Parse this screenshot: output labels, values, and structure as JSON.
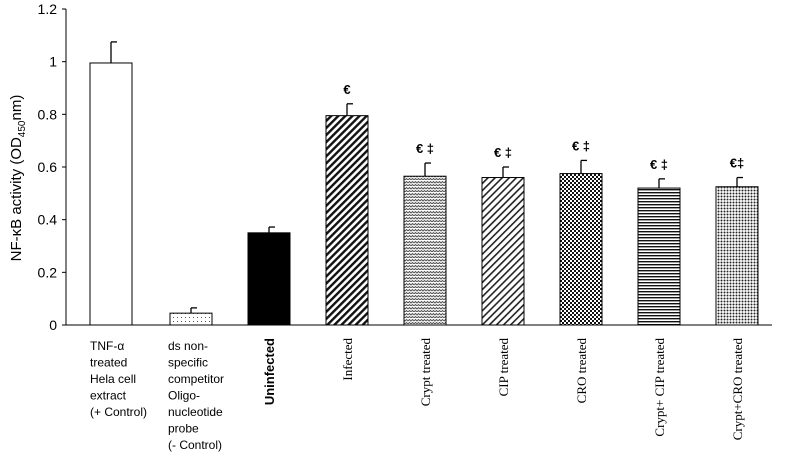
{
  "chart_data": {
    "type": "bar",
    "title": "",
    "xlabel": "",
    "ylabel": "NF-κB activity (OD450nm)",
    "ylabel_parts": {
      "main": "NF-κB activity (OD",
      "sub": "450",
      "end": "nm)"
    },
    "ylim": [
      0,
      1.2
    ],
    "yticks": [
      0,
      0.2,
      0.4,
      0.6,
      0.8,
      1,
      1.2
    ],
    "ytick_labels": [
      "0",
      "0.2",
      "0.4",
      "0.6",
      "0.8",
      "1",
      "1.2"
    ],
    "categories": [
      "TNF-α treated Hela cell extract (+ Control)",
      "ds non-specific competitor Oligo-nucleotide probe (- Control)",
      "Uninfected",
      "Infected",
      "Crypt treated",
      "CIP treated",
      "CRO treated",
      "Crypt+ CIP treated",
      "Crypt+CRO treated"
    ],
    "category_lines": [
      [
        "TNF-α",
        "treated",
        "Hela cell",
        "extract",
        "(+ Control)"
      ],
      [
        "ds non-",
        "specific",
        "competitor",
        "Oligo-",
        "nucleotide",
        "probe",
        "(- Control)"
      ],
      [
        "Uninfected"
      ],
      [
        "Infected"
      ],
      [
        "Crypt treated"
      ],
      [
        "CIP treated"
      ],
      [
        "CRO treated"
      ],
      [
        "Crypt+ CIP treated"
      ],
      [
        "Crypt+CRO treated"
      ]
    ],
    "values": [
      0.995,
      0.045,
      0.35,
      0.795,
      0.565,
      0.56,
      0.575,
      0.52,
      0.525
    ],
    "errors": [
      0.08,
      0.02,
      0.022,
      0.045,
      0.05,
      0.04,
      0.05,
      0.035,
      0.035
    ],
    "annotations": [
      "",
      "",
      "",
      "€",
      "€ ‡",
      "€ ‡",
      "€ ‡",
      "€ ‡",
      "€‡"
    ],
    "fills": [
      "white",
      "dots",
      "black",
      "diag-dense",
      "zigzag",
      "diag-sparse",
      "check",
      "horizontal",
      "dots-dense"
    ]
  }
}
